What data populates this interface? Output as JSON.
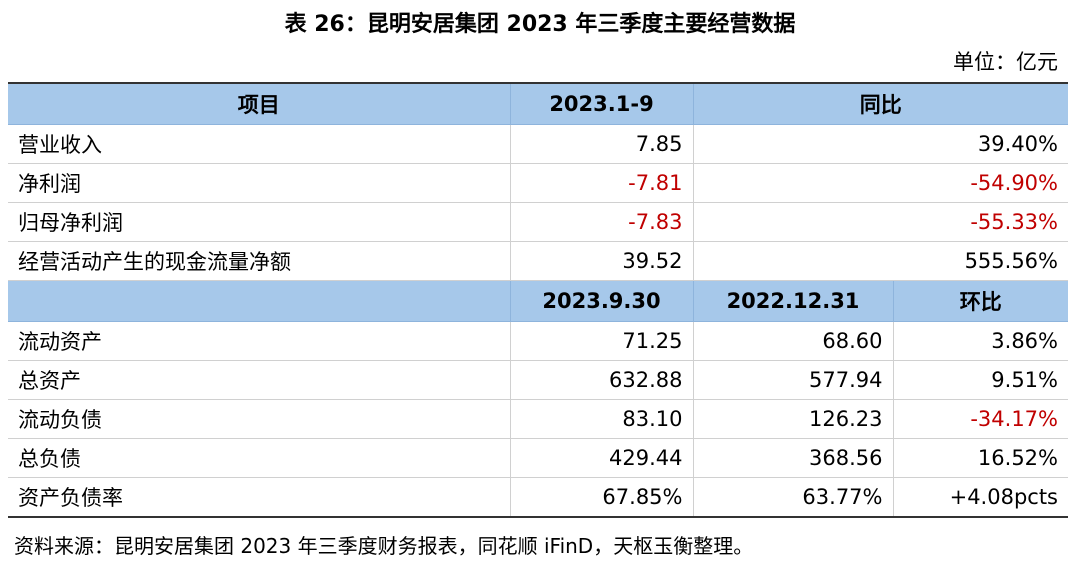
{
  "title": "表 26：昆明安居集团 2023 年三季度主要经营数据",
  "unit": "单位：亿元",
  "section1": {
    "header": [
      "项目",
      "2023.1-9",
      "同比"
    ],
    "rows": [
      [
        "营业收入",
        "7.85",
        "39.40%"
      ],
      [
        "净利润",
        "-7.81",
        "-54.90%"
      ],
      [
        "归母净利润",
        "-7.83",
        "-55.33%"
      ],
      [
        "经营活动产生的现金流量净额",
        "39.52",
        "555.56%"
      ]
    ]
  },
  "section2": {
    "header": [
      "2023.9.30",
      "2022.12.31",
      "环比"
    ],
    "rows": [
      [
        "流动资产",
        "71.25",
        "68.60",
        "3.86%"
      ],
      [
        "总资产",
        "632.88",
        "577.94",
        "9.51%"
      ],
      [
        "流动负债",
        "83.10",
        "126.23",
        "-34.17%"
      ],
      [
        "总负债",
        "429.44",
        "368.56",
        "16.52%"
      ],
      [
        "资产负债率",
        "67.85%",
        "63.77%",
        "+4.08pcts"
      ]
    ]
  },
  "source": "资料来源：昆明安居集团 2023 年三季度财务报表，同花顺 iFinD，天枢玉衡整理。"
}
